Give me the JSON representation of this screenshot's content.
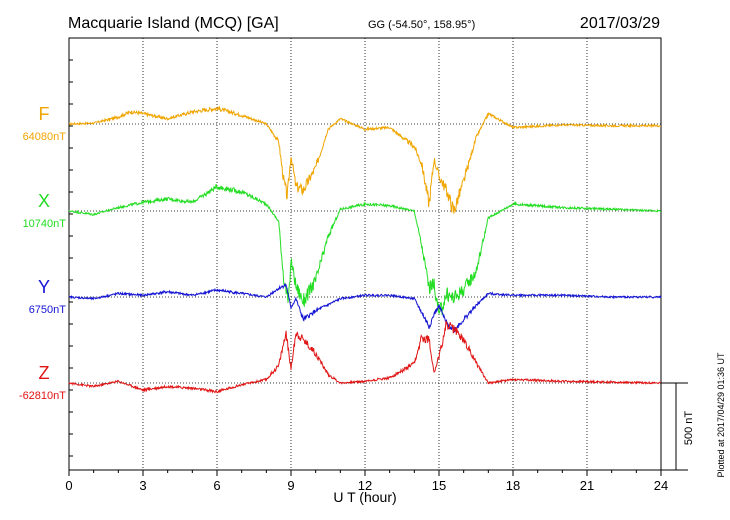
{
  "header": {
    "station": "Macquarie Island (MCQ)  [GA]",
    "coords": "GG (-54.50°, 158.95°)",
    "date": "2017/03/29"
  },
  "side_note": "Plotted at 2017/04/29 01:36 UT",
  "scale_label": "500 nT",
  "chart_data": {
    "type": "line",
    "title": "",
    "xlabel": "U T (hour)",
    "ylabel": "",
    "xlim": [
      0,
      24
    ],
    "xticks": [
      "0",
      "3",
      "6",
      "9",
      "12",
      "15",
      "18",
      "21",
      "24"
    ],
    "grid": true,
    "scale_bar_nT": 500,
    "series": [
      {
        "name": "F",
        "baseline_label": "64080nT",
        "baseline_nT": 64080,
        "color": "#f0a500",
        "x": [
          0,
          1,
          2,
          2.5,
          3,
          4,
          5,
          6,
          7,
          8,
          8.5,
          8.7,
          8.85,
          9,
          9.2,
          9.5,
          10,
          10.5,
          11,
          12,
          13,
          14,
          14.3,
          14.6,
          14.8,
          15,
          15.3,
          15.6,
          16,
          16.5,
          17,
          18,
          20,
          22,
          24
        ],
        "y": [
          64080,
          64085,
          64120,
          64150,
          64140,
          64110,
          64150,
          64170,
          64130,
          64080,
          63980,
          63760,
          63660,
          63900,
          63720,
          63700,
          63830,
          64050,
          64110,
          64050,
          64060,
          63950,
          63850,
          63620,
          63880,
          63780,
          63700,
          63580,
          63750,
          64000,
          64140,
          64060,
          64075,
          64070,
          64070
        ]
      },
      {
        "name": "X",
        "baseline_label": "10740nT",
        "baseline_nT": 10740,
        "color": "#22dd22",
        "x": [
          0,
          1,
          2,
          3,
          4,
          5,
          6,
          7,
          8,
          8.5,
          8.7,
          8.9,
          9,
          9.2,
          9.5,
          10,
          10.5,
          11,
          12,
          13,
          14,
          14.3,
          14.6,
          14.8,
          15,
          15.3,
          15.6,
          16,
          16.5,
          17,
          18,
          20,
          22,
          24
        ],
        "y": [
          10740,
          10720,
          10760,
          10790,
          10810,
          10790,
          10880,
          10850,
          10780,
          10680,
          10360,
          10210,
          10460,
          10310,
          10220,
          10340,
          10590,
          10750,
          10780,
          10770,
          10740,
          10540,
          10300,
          10320,
          10140,
          10260,
          10240,
          10290,
          10390,
          10700,
          10780,
          10760,
          10750,
          10740
        ]
      },
      {
        "name": "Y",
        "baseline_label": "6750nT",
        "baseline_nT": 6750,
        "color": "#1414d4",
        "x": [
          0,
          1,
          2,
          3,
          4,
          5,
          6,
          7,
          8,
          8.5,
          8.8,
          9,
          9.2,
          9.5,
          10,
          11,
          12,
          13,
          14,
          14.3,
          14.6,
          14.8,
          15,
          15.3,
          15.6,
          16,
          16.5,
          17,
          18,
          20,
          22,
          24
        ],
        "y": [
          6750,
          6740,
          6770,
          6760,
          6780,
          6760,
          6790,
          6770,
          6750,
          6800,
          6820,
          6690,
          6740,
          6620,
          6670,
          6740,
          6760,
          6760,
          6740,
          6660,
          6580,
          6650,
          6700,
          6600,
          6560,
          6620,
          6700,
          6770,
          6760,
          6760,
          6750,
          6750
        ]
      },
      {
        "name": "Z",
        "baseline_label": "-62810nT",
        "baseline_nT": -62810,
        "color": "#e01414",
        "x": [
          0,
          1,
          2,
          3,
          4,
          5,
          6,
          7,
          8,
          8.5,
          8.8,
          9,
          9.2,
          9.5,
          10,
          10.5,
          11,
          12,
          13,
          14,
          14.3,
          14.6,
          14.8,
          15,
          15.3,
          15.6,
          16,
          16.5,
          17,
          18,
          20,
          22,
          24
        ],
        "y": [
          -62810,
          -62830,
          -62800,
          -62850,
          -62830,
          -62840,
          -62860,
          -62820,
          -62790,
          -62710,
          -62520,
          -62730,
          -62520,
          -62560,
          -62640,
          -62760,
          -62810,
          -62800,
          -62780,
          -62700,
          -62550,
          -62560,
          -62750,
          -62660,
          -62470,
          -62500,
          -62560,
          -62690,
          -62810,
          -62790,
          -62800,
          -62805,
          -62810
        ]
      }
    ]
  }
}
